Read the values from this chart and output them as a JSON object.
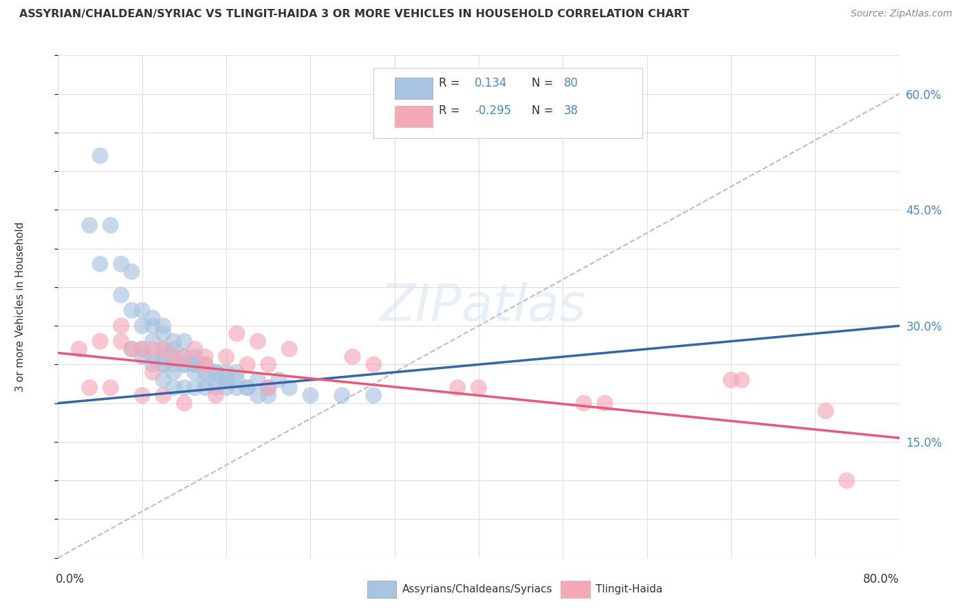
{
  "title": "ASSYRIAN/CHALDEAN/SYRIAC VS TLINGIT-HAIDA 3 OR MORE VEHICLES IN HOUSEHOLD CORRELATION CHART",
  "source_text": "Source: ZipAtlas.com",
  "ylabel": "3 or more Vehicles in Household",
  "xlim": [
    0.0,
    0.8
  ],
  "ylim": [
    0.0,
    0.65
  ],
  "y_ticks_right": [
    0.15,
    0.3,
    0.45,
    0.6
  ],
  "y_tick_labels_right": [
    "15.0%",
    "30.0%",
    "45.0%",
    "60.0%"
  ],
  "legend_R1": "0.134",
  "legend_N1": "80",
  "legend_R2": "-0.295",
  "legend_N2": "38",
  "blue_color": "#A8C4E0",
  "pink_color": "#F4A8B8",
  "blue_line_color": "#3366AA",
  "pink_line_color": "#EE5577",
  "trendline_gray": "#BBBBCC",
  "background_color": "#FFFFFF",
  "grid_color": "#DDDDDD",
  "legend1_label": "Assyrians/Chaldeans/Syriacs",
  "legend2_label": "Tlingit-Haida",
  "blue_trendline": [
    0.0,
    0.2,
    0.8,
    0.3
  ],
  "pink_trendline": [
    0.0,
    0.265,
    0.8,
    0.155
  ],
  "gray_trendline": [
    0.0,
    0.0,
    0.8,
    0.6
  ]
}
